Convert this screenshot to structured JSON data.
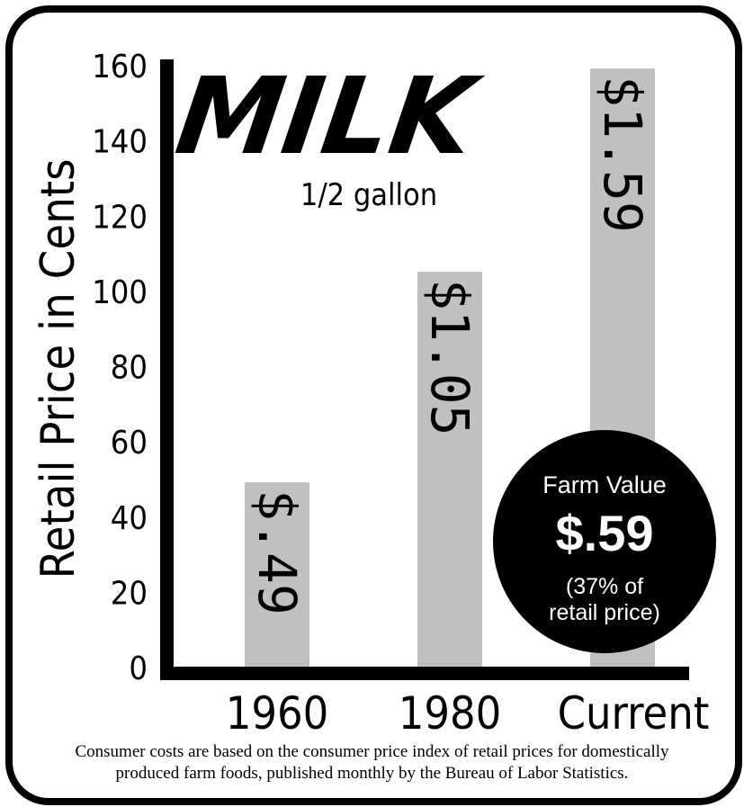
{
  "chart_data": {
    "type": "bar",
    "title": "MILK",
    "subtitle": "1/2 gallon",
    "ylabel": "Retail Price in Cents",
    "ylim": [
      0,
      160
    ],
    "yticks": [
      "0",
      "20",
      "40",
      "60",
      "80",
      "100",
      "120",
      "140",
      "160"
    ],
    "categories": [
      "1960",
      "1980",
      "Current"
    ],
    "values": [
      49,
      105,
      159
    ],
    "data_labels": [
      "$.49",
      "$1.05",
      "$1.59"
    ],
    "bar_color": "#c0c0c0",
    "grid": false
  },
  "callout": {
    "title": "Farm Value",
    "value": "$.59",
    "note_line1": "(37% of",
    "note_line2": "retail price)"
  },
  "footnote": {
    "line1": "Consumer costs are based on the consumer price index of retail prices for domestically",
    "line2": "produced farm foods, published monthly by the Bureau of Labor Statistics."
  }
}
